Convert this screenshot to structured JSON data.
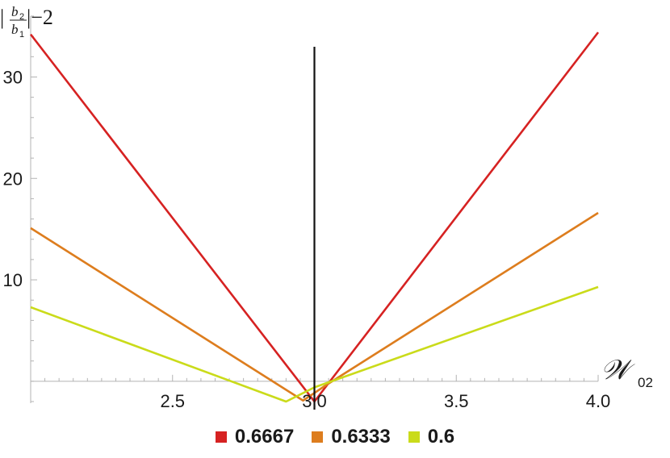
{
  "chart_data": {
    "type": "line",
    "title": "",
    "xlabel": "𝒲",
    "xlabel_sub": "02",
    "ylabel_parts": {
      "bar_left": "|",
      "numer": "b",
      "numer_sub": "2",
      "denom": "b",
      "denom_sub": "1",
      "suffix": "|−2"
    },
    "xlim": [
      2.0,
      4.0
    ],
    "ylim": [
      -2,
      36
    ],
    "xticks": [
      2.5,
      3.0,
      3.5,
      4.0
    ],
    "xtick_labels": [
      "2.5",
      "3.0",
      "3.5",
      "4.0"
    ],
    "yticks": [
      10,
      20,
      30
    ],
    "ytick_labels": [
      "10",
      "20",
      "30"
    ],
    "vertical_line_x": 3.0,
    "grid": false,
    "legend_position": "bottom",
    "series": [
      {
        "name": "0.6667",
        "color": "#d62222",
        "x": [
          2.0,
          3.0,
          4.0
        ],
        "y": [
          34.2,
          -2.0,
          34.4
        ]
      },
      {
        "name": "0.6333",
        "color": "#dd7d1e",
        "x": [
          2.0,
          2.96,
          3.04,
          4.0
        ],
        "y": [
          15.1,
          -1.9,
          -0.4,
          16.6
        ]
      },
      {
        "name": "0.6",
        "color": "#cadb1a",
        "x": [
          2.0,
          2.9,
          3.0,
          4.0
        ],
        "y": [
          7.3,
          -2.0,
          -0.6,
          9.3
        ]
      }
    ]
  }
}
